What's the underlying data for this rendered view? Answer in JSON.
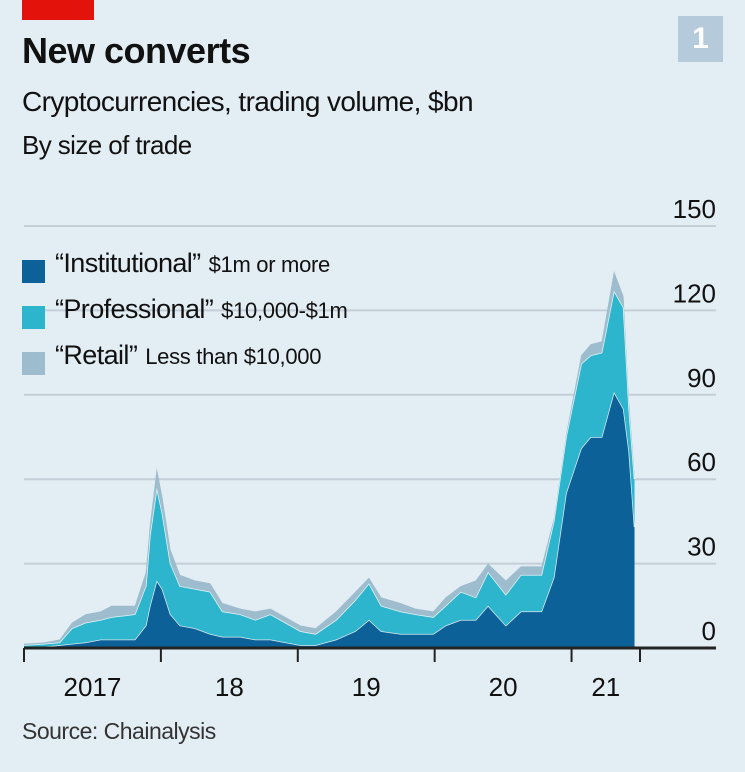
{
  "header": {
    "badge": "1",
    "title": "New converts",
    "subtitle": "Cryptocurrencies, trading volume, $bn",
    "subsubtitle": "By size of trade"
  },
  "source": "Source: Chainalysis",
  "colors": {
    "institutional": "#0c6198",
    "professional": "#2cb5cc",
    "retail": "#9dbccd",
    "gridline": "#c4ced6",
    "axis": "#222222",
    "background": "#e3edf4",
    "separator": "#ffffff"
  },
  "legend": [
    {
      "name": "“Institutional”",
      "desc": "$1m or more",
      "series": "institutional"
    },
    {
      "name": "“Professional”",
      "desc": "$10,000-$1m",
      "series": "professional"
    },
    {
      "name": "“Retail”",
      "desc": "Less than $10,000",
      "series": "retail"
    }
  ],
  "chart_data": {
    "type": "area",
    "stacked": true,
    "title": "New converts",
    "subtitle": "Cryptocurrencies, trading volume, $bn",
    "xlabel": "",
    "ylabel": "",
    "ylim": [
      0,
      150
    ],
    "xlim": [
      2017.0,
      2021.5
    ],
    "yticks": [
      0,
      30,
      60,
      90,
      120,
      150
    ],
    "ytick_labels": [
      "0",
      "30",
      "60",
      "90",
      "120",
      "150"
    ],
    "xticks": [
      2017.0,
      2018.0,
      2019.0,
      2020.0,
      2021.0,
      2021.5
    ],
    "xtick_labels": [
      "2017",
      "18",
      "19",
      "20",
      "21"
    ],
    "grid": true,
    "legend_position": "top-left",
    "x": [
      2017.0,
      2017.15,
      2017.26,
      2017.35,
      2017.45,
      2017.56,
      2017.64,
      2017.81,
      2017.89,
      2017.92,
      2017.97,
      2018.01,
      2018.07,
      2018.14,
      2018.25,
      2018.36,
      2018.45,
      2018.58,
      2018.69,
      2018.8,
      2018.91,
      2019.02,
      2019.13,
      2019.28,
      2019.42,
      2019.52,
      2019.61,
      2019.75,
      2019.86,
      2019.99,
      2020.08,
      2020.19,
      2020.3,
      2020.39,
      2020.52,
      2020.63,
      2020.78,
      2020.87,
      2020.96,
      2021.07,
      2021.14,
      2021.22,
      2021.31,
      2021.38,
      2021.42,
      2021.46
    ],
    "series": [
      {
        "name": "Institutional",
        "values": [
          0.5,
          0.5,
          1,
          1.5,
          2,
          3,
          3,
          3,
          8,
          15,
          24,
          21,
          12,
          8,
          7,
          5,
          4,
          4,
          3,
          3,
          2,
          1,
          1,
          3,
          6,
          10,
          6,
          5,
          5,
          5,
          8,
          10,
          10,
          15,
          8,
          13,
          13,
          25,
          55,
          71,
          75,
          75,
          91,
          85,
          70,
          43
        ]
      },
      {
        "name": "Professional",
        "values": [
          0.5,
          1,
          1,
          5.5,
          7,
          7,
          8,
          9,
          14,
          25,
          33,
          27,
          18,
          14,
          14,
          15,
          9,
          8,
          7,
          9,
          7,
          5,
          4,
          7,
          11,
          13,
          9,
          8,
          7,
          6,
          7,
          10,
          8,
          12,
          11,
          13,
          13,
          20,
          20,
          30,
          29,
          30,
          36,
          36,
          15,
          17
        ]
      },
      {
        "name": "Retail",
        "values": [
          0.5,
          0.5,
          1,
          2,
          3,
          3,
          4,
          3,
          5,
          4,
          7,
          6,
          5,
          4,
          3,
          3,
          3,
          2,
          3,
          2,
          2,
          2,
          2,
          3,
          3,
          2,
          3,
          3,
          2,
          2,
          3,
          2,
          6,
          3,
          5,
          3,
          3,
          1,
          1,
          3,
          4,
          4,
          7,
          4,
          3,
          2
        ]
      }
    ]
  }
}
